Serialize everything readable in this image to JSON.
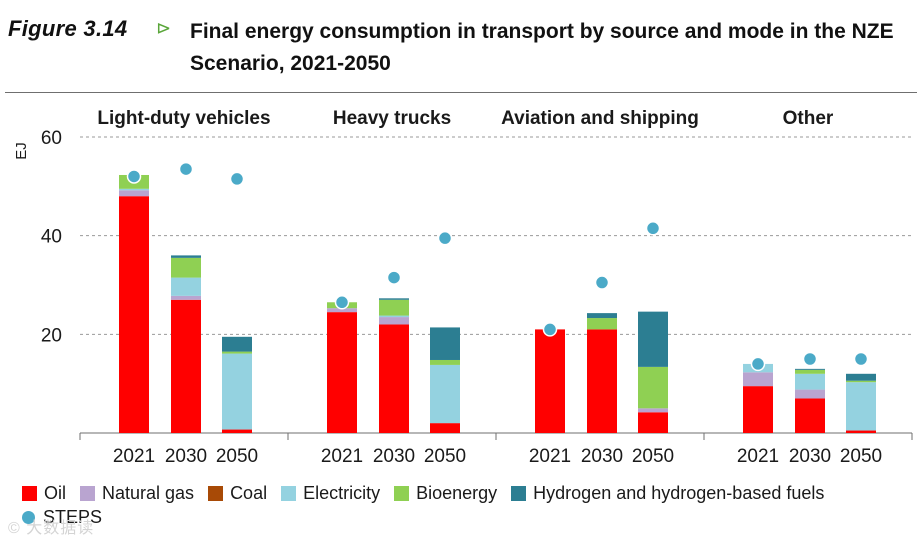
{
  "figure": {
    "label": "Figure 3.14",
    "arrow": "⊳",
    "title": "Final energy consumption in transport by source and mode in the NZE Scenario, 2021-2050"
  },
  "watermark": "© 大数据读",
  "chart_data": {
    "type": "bar",
    "stacked": true,
    "ylabel": "EJ",
    "ylim": [
      0,
      60
    ],
    "yticks": [
      20,
      40,
      60
    ],
    "grid": true,
    "groups": [
      "Light-duty vehicles",
      "Heavy trucks",
      "Aviation and shipping",
      "Other"
    ],
    "categories": [
      "2021",
      "2030",
      "2050"
    ],
    "series": [
      {
        "name": "Oil",
        "color": "#ff0000",
        "values": [
          [
            48,
            27,
            0.7
          ],
          [
            24.5,
            22,
            2
          ],
          [
            21,
            21,
            4.2
          ],
          [
            9.5,
            7,
            0.5
          ]
        ]
      },
      {
        "name": "Natural gas",
        "color": "#b9a4d0",
        "values": [
          [
            1.2,
            0.8,
            0
          ],
          [
            0.8,
            1.5,
            0
          ],
          [
            0,
            0,
            0.8
          ],
          [
            2.8,
            1.8,
            0
          ]
        ]
      },
      {
        "name": "Coal",
        "color": "#a84a06",
        "values": [
          [
            0,
            0,
            0
          ],
          [
            0,
            0,
            0
          ],
          [
            0,
            0,
            0
          ],
          [
            0,
            0,
            0
          ]
        ]
      },
      {
        "name": "Electricity",
        "color": "#94d2e0",
        "values": [
          [
            0.3,
            3.7,
            15.4
          ],
          [
            0,
            0.3,
            11.8
          ],
          [
            0,
            0,
            0
          ],
          [
            1.7,
            3.2,
            9.8
          ]
        ]
      },
      {
        "name": "Bioenergy",
        "color": "#8fd053",
        "values": [
          [
            2.8,
            4,
            0.4
          ],
          [
            1.2,
            3.2,
            1
          ],
          [
            0,
            2.3,
            8.4
          ],
          [
            0,
            0.8,
            0.3
          ]
        ]
      },
      {
        "name": "Hydrogen and hydrogen-based fuels",
        "color": "#2c7e92",
        "values": [
          [
            0,
            0.5,
            3
          ],
          [
            0,
            0.3,
            6.6
          ],
          [
            0,
            1,
            11.2
          ],
          [
            0,
            0.2,
            1.4
          ]
        ]
      }
    ],
    "steps": {
      "name": "STEPS",
      "color": "#4baac8",
      "values": [
        [
          52,
          53.5,
          51.5
        ],
        [
          26.5,
          31.5,
          39.5
        ],
        [
          21,
          30.5,
          41.5
        ],
        [
          14,
          15,
          15
        ]
      ]
    },
    "legend": {
      "position": "bottom"
    }
  }
}
